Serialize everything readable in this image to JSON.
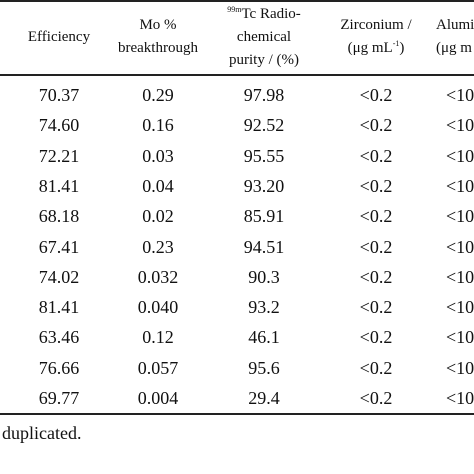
{
  "table": {
    "headers": {
      "efficiency": "Efficiency",
      "mo_line1": "Mo %",
      "mo_line2": "breakthrough",
      "tc_sup": "99m",
      "tc_line1": "Tc Radio-",
      "tc_line2": "chemical",
      "tc_line3": "purity / (%)",
      "zr_line1": "Zirconium /",
      "zr_line2_pre": "(μg mL",
      "zr_line2_sup": "-1",
      "zr_line2_post": ")",
      "al_line1": "Alumin",
      "al_line2": "(μg m"
    },
    "rows": [
      {
        "efficiency": "70.37",
        "mo": "0.29",
        "tc": "97.98",
        "zr": "<0.2",
        "al": "<10"
      },
      {
        "efficiency": "74.60",
        "mo": "0.16",
        "tc": "92.52",
        "zr": "<0.2",
        "al": "<10"
      },
      {
        "efficiency": "72.21",
        "mo": "0.03",
        "tc": "95.55",
        "zr": "<0.2",
        "al": "<10"
      },
      {
        "efficiency": "81.41",
        "mo": "0.04",
        "tc": "93.20",
        "zr": "<0.2",
        "al": "<10"
      },
      {
        "efficiency": "68.18",
        "mo": "0.02",
        "tc": "85.91",
        "zr": "<0.2",
        "al": "<10"
      },
      {
        "efficiency": "67.41",
        "mo": "0.23",
        "tc": "94.51",
        "zr": "<0.2",
        "al": "<10"
      },
      {
        "efficiency": "74.02",
        "mo": "0.032",
        "tc": "90.3",
        "zr": "<0.2",
        "al": "<10"
      },
      {
        "efficiency": "81.41",
        "mo": "0.040",
        "tc": "93.2",
        "zr": "<0.2",
        "al": "<10"
      },
      {
        "efficiency": "63.46",
        "mo": "0.12",
        "tc": "46.1",
        "zr": "<0.2",
        "al": "<10"
      },
      {
        "efficiency": "76.66",
        "mo": "0.057",
        "tc": "95.6",
        "zr": "<0.2",
        "al": "<10"
      },
      {
        "efficiency": "69.77",
        "mo": "0.004",
        "tc": "29.4",
        "zr": "<0.2",
        "al": "<10"
      }
    ]
  },
  "footnote": "duplicated."
}
